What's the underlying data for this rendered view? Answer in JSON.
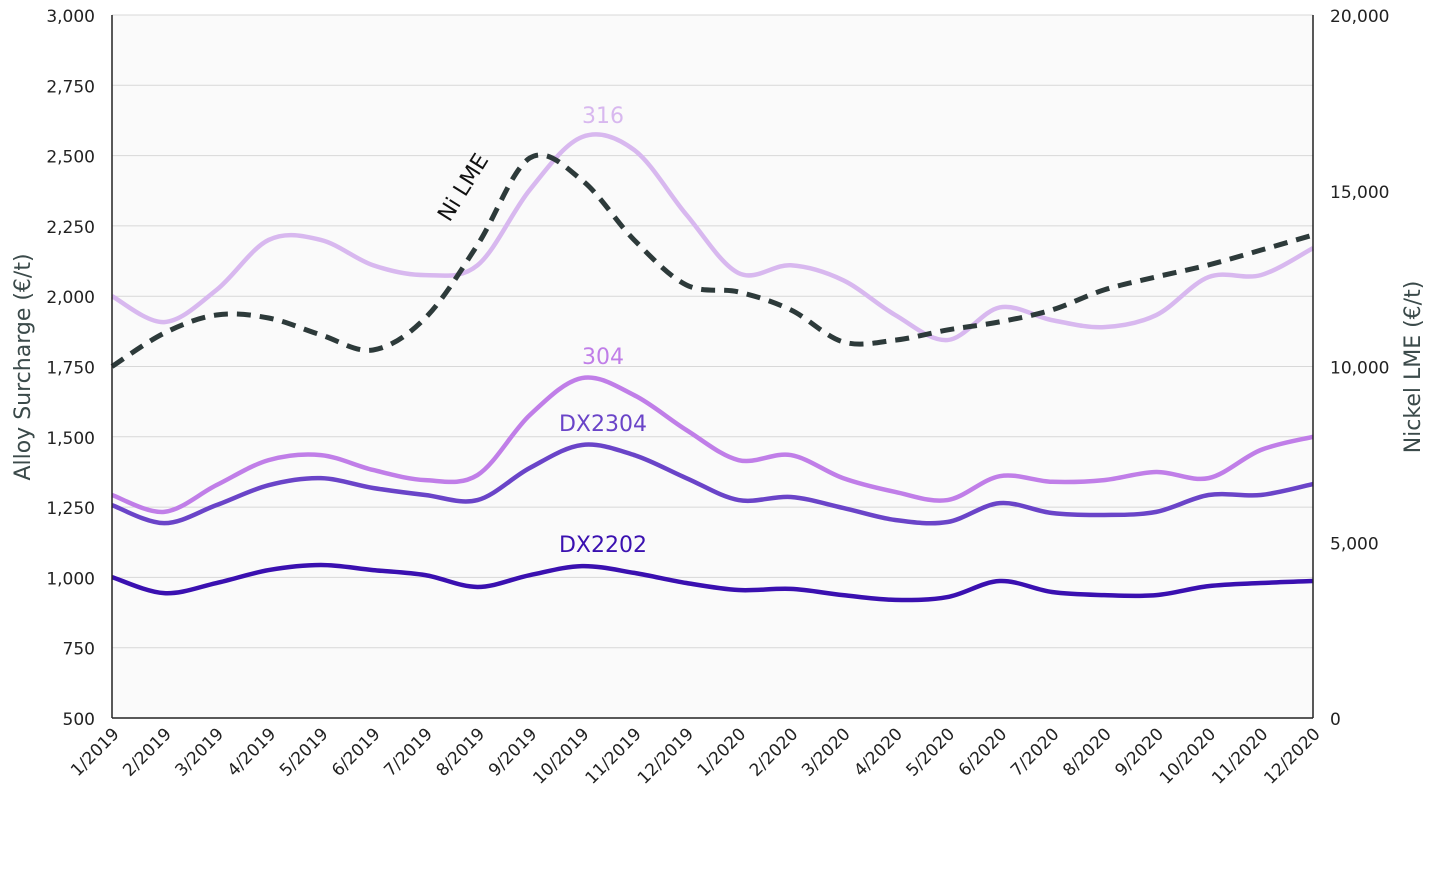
{
  "chart_data": {
    "type": "line",
    "categories": [
      "1/2019",
      "2/2019",
      "3/2019",
      "4/2019",
      "5/2019",
      "6/2019",
      "7/2019",
      "8/2019",
      "9/2019",
      "10/2019",
      "11/2019",
      "12/2019",
      "1/2020",
      "2/2020",
      "3/2020",
      "4/2020",
      "5/2020",
      "6/2020",
      "7/2020",
      "8/2020",
      "9/2020",
      "10/2020",
      "11/2020",
      "12/2020"
    ],
    "ylabel": "Alloy Surcharge (€/t)",
    "y2label": "Nickel LME (€/t)",
    "ylim": [
      500,
      3000
    ],
    "y2lim": [
      0,
      20000
    ],
    "yticks": [
      "500",
      "750",
      "1,000",
      "1,250",
      "1,500",
      "1,750",
      "2,000",
      "2,250",
      "2,500",
      "2,750",
      "3,000"
    ],
    "y2ticks": [
      "0",
      "5,000",
      "10,000",
      "15,000",
      "20,000"
    ],
    "grid": true,
    "series": [
      {
        "name": "316",
        "axis": "left",
        "color": "#d8b8ef",
        "dashed": false,
        "label_at": "10/2019",
        "values": [
          2000,
          1908,
          2022,
          2200,
          2200,
          2110,
          2075,
          2110,
          2378,
          2566,
          2520,
          2290,
          2082,
          2110,
          2057,
          1933,
          1844,
          1960,
          1915,
          1890,
          1933,
          2068,
          2075,
          2171
        ]
      },
      {
        "name": "304",
        "axis": "left",
        "color": "#c07ee8",
        "dashed": false,
        "label_at": "10/2019",
        "values": [
          1293,
          1233,
          1328,
          1417,
          1435,
          1382,
          1346,
          1364,
          1577,
          1709,
          1648,
          1524,
          1417,
          1435,
          1353,
          1304,
          1275,
          1360,
          1340,
          1346,
          1375,
          1353,
          1453,
          1500
        ]
      },
      {
        "name": "DX2304",
        "axis": "left",
        "color": "#6a44c8",
        "dashed": false,
        "label_at": "10/2019",
        "values": [
          1257,
          1193,
          1257,
          1328,
          1353,
          1318,
          1293,
          1275,
          1389,
          1471,
          1435,
          1353,
          1275,
          1286,
          1247,
          1204,
          1197,
          1264,
          1229,
          1222,
          1233,
          1293,
          1293,
          1332
        ]
      },
      {
        "name": "DX2202",
        "axis": "left",
        "color": "#3a10b0",
        "dashed": false,
        "label_at": "10/2019",
        "values": [
          1001,
          944,
          980,
          1026,
          1044,
          1026,
          1008,
          966,
          1008,
          1040,
          1016,
          980,
          955,
          959,
          937,
          920,
          930,
          987,
          948,
          937,
          937,
          969,
          980,
          987
        ]
      },
      {
        "name": "Ni LME",
        "axis": "right",
        "color": "#2d3a3a",
        "dashed": true,
        "label_at": "8/2019",
        "values": [
          10000,
          10950,
          11465,
          11380,
          10900,
          10470,
          11380,
          13460,
          15930,
          15300,
          13600,
          12320,
          12120,
          11610,
          10700,
          10750,
          11040,
          11270,
          11610,
          12180,
          12550,
          12890,
          13310,
          13740
        ]
      }
    ]
  }
}
